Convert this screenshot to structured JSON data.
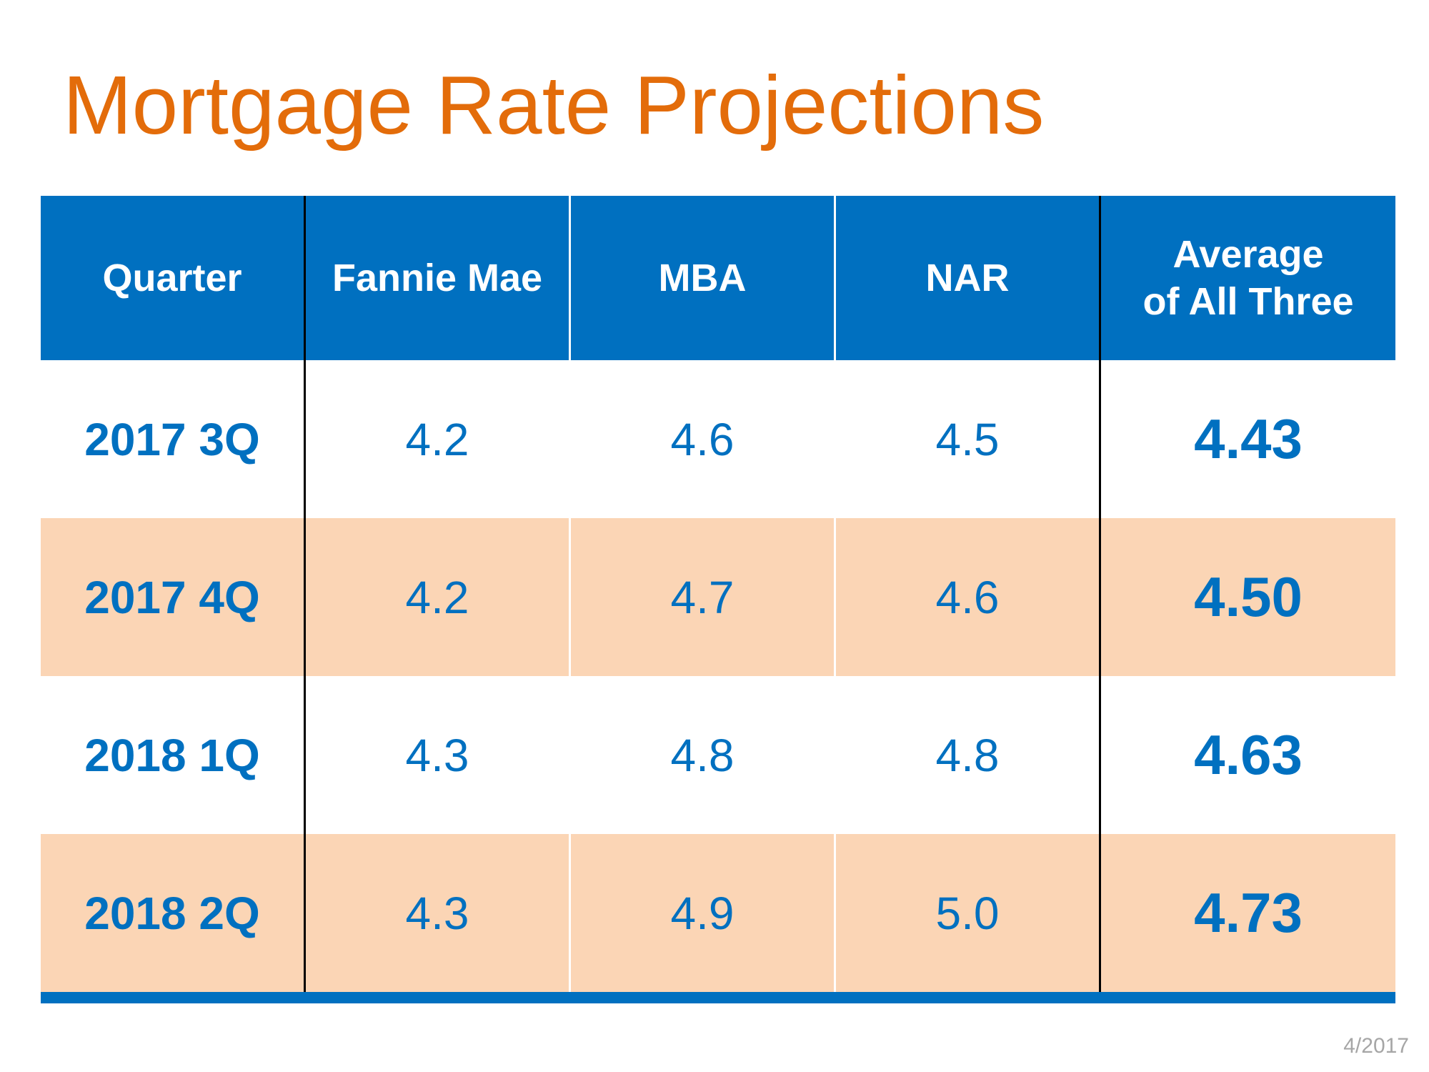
{
  "title": "Mortgage Rate Projections",
  "date_stamp": "4/2017",
  "colors": {
    "title": "#E36C0A",
    "header_bg": "#0070C0",
    "row_alt_bg": "#FBD5B5",
    "value_text": "#0070C0",
    "bottom_bar": "#0070C0"
  },
  "chart_data": {
    "type": "table",
    "title": "Mortgage Rate Projections",
    "columns": [
      "Quarter",
      "Fannie Mae",
      "MBA",
      "NAR",
      "Average of All Three"
    ],
    "header_lines": {
      "avg_line1": "Average",
      "avg_line2": "of All Three"
    },
    "rows": [
      {
        "quarter": "2017 3Q",
        "fannie_mae": "4.2",
        "mba": "4.6",
        "nar": "4.5",
        "average": "4.43"
      },
      {
        "quarter": "2017 4Q",
        "fannie_mae": "4.2",
        "mba": "4.7",
        "nar": "4.6",
        "average": "4.50"
      },
      {
        "quarter": "2018 1Q",
        "fannie_mae": "4.3",
        "mba": "4.8",
        "nar": "4.8",
        "average": "4.63"
      },
      {
        "quarter": "2018 2Q",
        "fannie_mae": "4.3",
        "mba": "4.9",
        "nar": "5.0",
        "average": "4.73"
      }
    ]
  }
}
